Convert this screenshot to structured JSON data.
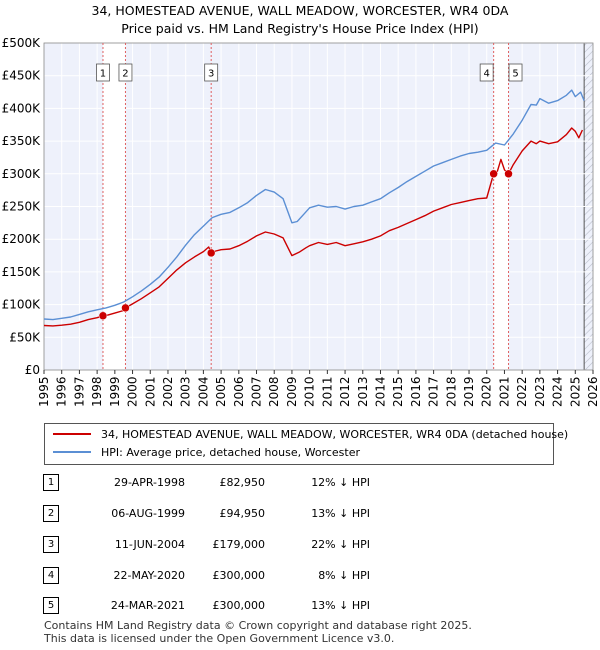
{
  "chart_data": {
    "type": "line",
    "title": "34, HOMESTEAD AVENUE, WALL MEADOW, WORCESTER, WR4 0DA",
    "subtitle": "Price paid vs. HM Land Registry's House Price Index (HPI)",
    "xlim": [
      1995,
      2026
    ],
    "ylim": [
      0,
      500000
    ],
    "x_ticks": [
      1995,
      1996,
      1997,
      1998,
      1999,
      2000,
      2001,
      2002,
      2003,
      2004,
      2005,
      2006,
      2007,
      2008,
      2009,
      2010,
      2011,
      2012,
      2013,
      2014,
      2015,
      2016,
      2017,
      2018,
      2019,
      2020,
      2021,
      2022,
      2023,
      2024,
      2025,
      2026
    ],
    "y_ticks": [
      {
        "value": 0,
        "label": "£0"
      },
      {
        "value": 50000,
        "label": "£50K"
      },
      {
        "value": 100000,
        "label": "£100K"
      },
      {
        "value": 150000,
        "label": "£150K"
      },
      {
        "value": 200000,
        "label": "£200K"
      },
      {
        "value": 250000,
        "label": "£250K"
      },
      {
        "value": 300000,
        "label": "£300K"
      },
      {
        "value": 350000,
        "label": "£350K"
      },
      {
        "value": 400000,
        "label": "£400K"
      },
      {
        "value": 450000,
        "label": "£450K"
      },
      {
        "value": 500000,
        "label": "£500K"
      }
    ],
    "series": [
      {
        "name": "34, HOMESTEAD AVENUE, WALL MEADOW, WORCESTER, WR4 0DA (detached house)",
        "color": "#cc0000",
        "points": [
          [
            1995.0,
            68000
          ],
          [
            1995.5,
            67500
          ],
          [
            1996.0,
            68500
          ],
          [
            1996.5,
            70000
          ],
          [
            1997.0,
            73000
          ],
          [
            1997.5,
            77000
          ],
          [
            1998.0,
            80000
          ],
          [
            1998.33,
            82950
          ],
          [
            1998.6,
            84000
          ],
          [
            1999.0,
            87000
          ],
          [
            1999.5,
            91000
          ],
          [
            1999.6,
            94950
          ],
          [
            2000.0,
            101000
          ],
          [
            2000.5,
            109000
          ],
          [
            2001.0,
            118000
          ],
          [
            2001.5,
            127000
          ],
          [
            2002.0,
            140000
          ],
          [
            2002.5,
            153000
          ],
          [
            2003.0,
            164000
          ],
          [
            2003.5,
            173000
          ],
          [
            2004.0,
            181000
          ],
          [
            2004.3,
            188000
          ],
          [
            2004.44,
            179000
          ],
          [
            2004.7,
            182000
          ],
          [
            2005.0,
            184000
          ],
          [
            2005.5,
            185000
          ],
          [
            2006.0,
            190000
          ],
          [
            2006.5,
            197000
          ],
          [
            2007.0,
            205000
          ],
          [
            2007.5,
            211000
          ],
          [
            2008.0,
            208000
          ],
          [
            2008.5,
            202000
          ],
          [
            2009.0,
            175000
          ],
          [
            2009.4,
            180000
          ],
          [
            2009.8,
            187000
          ],
          [
            2010.0,
            190000
          ],
          [
            2010.5,
            195000
          ],
          [
            2011.0,
            192000
          ],
          [
            2011.5,
            195000
          ],
          [
            2012.0,
            190000
          ],
          [
            2012.5,
            193000
          ],
          [
            2013.0,
            196000
          ],
          [
            2013.5,
            200000
          ],
          [
            2014.0,
            205000
          ],
          [
            2014.5,
            213000
          ],
          [
            2015.0,
            218000
          ],
          [
            2015.5,
            224000
          ],
          [
            2016.0,
            230000
          ],
          [
            2016.5,
            236000
          ],
          [
            2017.0,
            243000
          ],
          [
            2017.5,
            248000
          ],
          [
            2018.0,
            253000
          ],
          [
            2018.5,
            256000
          ],
          [
            2019.0,
            259000
          ],
          [
            2019.5,
            262000
          ],
          [
            2020.0,
            263000
          ],
          [
            2020.39,
            300000
          ],
          [
            2020.6,
            304000
          ],
          [
            2020.8,
            322000
          ],
          [
            2021.0,
            306000
          ],
          [
            2021.23,
            300000
          ],
          [
            2021.5,
            314000
          ],
          [
            2022.0,
            335000
          ],
          [
            2022.5,
            350000
          ],
          [
            2022.8,
            346000
          ],
          [
            2023.0,
            350000
          ],
          [
            2023.5,
            346000
          ],
          [
            2024.0,
            349000
          ],
          [
            2024.5,
            360000
          ],
          [
            2024.8,
            370000
          ],
          [
            2025.0,
            365000
          ],
          [
            2025.2,
            355000
          ],
          [
            2025.4,
            367000
          ]
        ]
      },
      {
        "name": "HPI: Average price, detached house, Worcester",
        "color": "#5b8fd4",
        "points": [
          [
            1995.0,
            78000
          ],
          [
            1995.5,
            77000
          ],
          [
            1996.0,
            79000
          ],
          [
            1996.5,
            81000
          ],
          [
            1997.0,
            85000
          ],
          [
            1997.5,
            89000
          ],
          [
            1998.0,
            92000
          ],
          [
            1998.5,
            95000
          ],
          [
            1999.0,
            99000
          ],
          [
            1999.5,
            104000
          ],
          [
            2000.0,
            112000
          ],
          [
            2000.5,
            121000
          ],
          [
            2001.0,
            131000
          ],
          [
            2001.5,
            142000
          ],
          [
            2002.0,
            157000
          ],
          [
            2002.5,
            173000
          ],
          [
            2003.0,
            191000
          ],
          [
            2003.5,
            207000
          ],
          [
            2004.0,
            220000
          ],
          [
            2004.5,
            233000
          ],
          [
            2005.0,
            238000
          ],
          [
            2005.5,
            241000
          ],
          [
            2006.0,
            248000
          ],
          [
            2006.5,
            256000
          ],
          [
            2007.0,
            267000
          ],
          [
            2007.5,
            276000
          ],
          [
            2008.0,
            272000
          ],
          [
            2008.5,
            262000
          ],
          [
            2009.0,
            225000
          ],
          [
            2009.3,
            227000
          ],
          [
            2009.7,
            239000
          ],
          [
            2010.0,
            248000
          ],
          [
            2010.5,
            252000
          ],
          [
            2011.0,
            249000
          ],
          [
            2011.5,
            250000
          ],
          [
            2012.0,
            246000
          ],
          [
            2012.5,
            250000
          ],
          [
            2013.0,
            252000
          ],
          [
            2013.5,
            257000
          ],
          [
            2014.0,
            262000
          ],
          [
            2014.5,
            271000
          ],
          [
            2015.0,
            279000
          ],
          [
            2015.5,
            288000
          ],
          [
            2016.0,
            296000
          ],
          [
            2016.5,
            304000
          ],
          [
            2017.0,
            312000
          ],
          [
            2017.5,
            317000
          ],
          [
            2018.0,
            322000
          ],
          [
            2018.5,
            327000
          ],
          [
            2019.0,
            331000
          ],
          [
            2019.5,
            333000
          ],
          [
            2020.0,
            336000
          ],
          [
            2020.5,
            347000
          ],
          [
            2021.0,
            344000
          ],
          [
            2021.5,
            361000
          ],
          [
            2022.0,
            382000
          ],
          [
            2022.5,
            406000
          ],
          [
            2022.8,
            405000
          ],
          [
            2023.0,
            415000
          ],
          [
            2023.5,
            408000
          ],
          [
            2024.0,
            412000
          ],
          [
            2024.5,
            420000
          ],
          [
            2024.8,
            428000
          ],
          [
            2025.0,
            418000
          ],
          [
            2025.3,
            425000
          ],
          [
            2025.5,
            412000
          ]
        ]
      }
    ],
    "sales": [
      {
        "num": "1",
        "x": 1998.33,
        "price": 82950
      },
      {
        "num": "2",
        "x": 1999.6,
        "price": 94950
      },
      {
        "num": "3",
        "x": 2004.44,
        "price": 179000
      },
      {
        "num": "4",
        "x": 2020.39,
        "price": 300000
      },
      {
        "num": "5",
        "x": 2021.23,
        "price": 300000
      }
    ],
    "shaded_periods": [
      [
        1998.33,
        1999.6
      ],
      [
        2004.44,
        2004.44
      ],
      [
        2020.39,
        2021.23
      ]
    ],
    "now_year": 2025.5,
    "legend": "bottom"
  },
  "legend_items": [
    {
      "label": "34, HOMESTEAD AVENUE, WALL MEADOW, WORCESTER, WR4 0DA (detached house)",
      "color": "#cc0000"
    },
    {
      "label": "HPI: Average price, detached house, Worcester",
      "color": "#5b8fd4"
    }
  ],
  "transactions": [
    {
      "num": "1",
      "date": "29-APR-1998",
      "price": "£82,950",
      "hpi": "12% ↓ HPI"
    },
    {
      "num": "2",
      "date": "06-AUG-1999",
      "price": "£94,950",
      "hpi": "13% ↓ HPI"
    },
    {
      "num": "3",
      "date": "11-JUN-2004",
      "price": "£179,000",
      "hpi": "22% ↓ HPI"
    },
    {
      "num": "4",
      "date": "22-MAY-2020",
      "price": "£300,000",
      "hpi": "8% ↓ HPI"
    },
    {
      "num": "5",
      "date": "24-MAR-2021",
      "price": "£300,000",
      "hpi": "13% ↓ HPI"
    }
  ],
  "footer": {
    "line1": "Contains HM Land Registry data © Crown copyright and database right 2025.",
    "line2": "This data is licensed under the Open Government Licence v3.0."
  }
}
